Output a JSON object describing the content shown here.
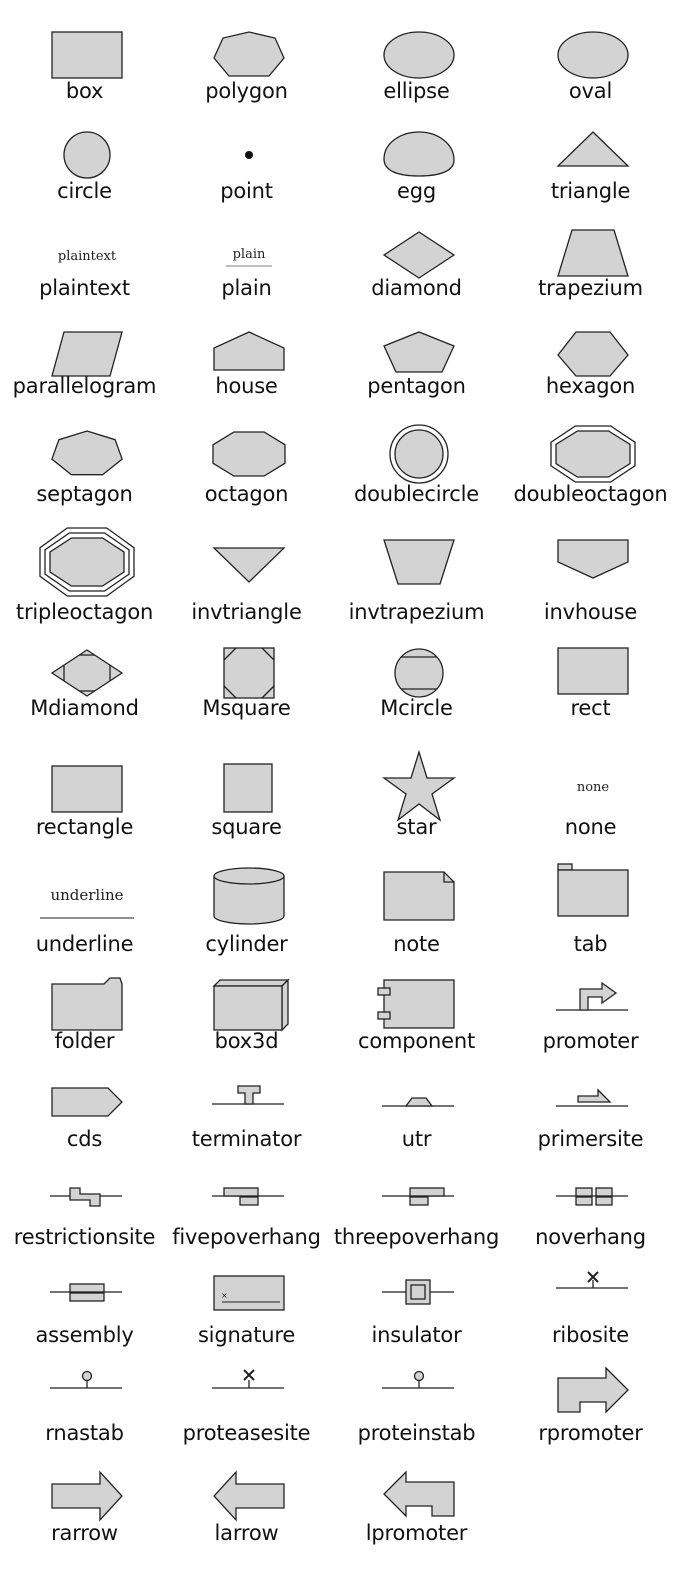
{
  "shapes": [
    "box",
    "polygon",
    "ellipse",
    "oval",
    "circle",
    "point",
    "egg",
    "triangle",
    "plaintext",
    "plain",
    "diamond",
    "trapezium",
    "parallelogram",
    "house",
    "pentagon",
    "hexagon",
    "septagon",
    "octagon",
    "doublecircle",
    "doubleoctagon",
    "tripleoctagon",
    "invtriangle",
    "invtrapezium",
    "invhouse",
    "Mdiamond",
    "Msquare",
    "Mcircle",
    "rect",
    "rectangle",
    "square",
    "star",
    "none",
    "underline",
    "cylinder",
    "note",
    "tab",
    "folder",
    "box3d",
    "component",
    "promoter",
    "cds",
    "terminator",
    "utr",
    "primersite",
    "restrictionsite",
    "fivepoverhang",
    "threepoverhang",
    "noverhang",
    "assembly",
    "signature",
    "insulator",
    "ribosite",
    "rnastab",
    "proteasesite",
    "proteinstab",
    "rpromoter",
    "rarrow",
    "larrow",
    "lpromoter"
  ],
  "inner_text": {
    "plaintext": "plaintext",
    "plain": "plain",
    "none": "none",
    "underline": "underline"
  },
  "colors": {
    "fill": "#d3d3d3",
    "stroke": "#222222",
    "background": "#ffffff"
  }
}
